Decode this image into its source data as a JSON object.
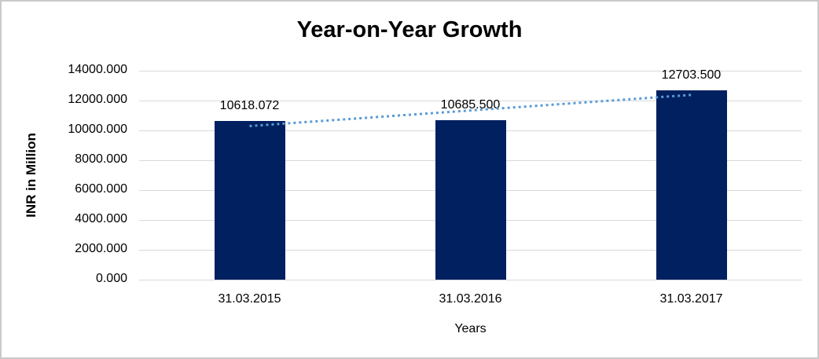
{
  "chart_data": {
    "type": "bar",
    "title": "Year-on-Year Growth",
    "xlabel": "Years",
    "ylabel": "INR in Million",
    "categories": [
      "31.03.2015",
      "31.03.2016",
      "31.03.2017"
    ],
    "values": [
      10618.072,
      10685.5,
      12703.5
    ],
    "data_labels": [
      "10618.072",
      "10685.500",
      "12703.500"
    ],
    "ylim": [
      0,
      14000
    ],
    "ytick_labels": [
      "0.000",
      "2000.000",
      "4000.000",
      "6000.000",
      "8000.000",
      "10000.000",
      "12000.000",
      "14000.000"
    ],
    "grid": "horizontal-only",
    "legend": "none",
    "colors": {
      "bar": "#002060",
      "trendline": "#5b9bd5",
      "gridline": "#d9d9d9",
      "text": "#000000",
      "frame_border": "#c9c9c9",
      "background": "#ffffff"
    },
    "trendline": {
      "type": "linear",
      "style": "dotted",
      "fit_values": [
        10292.98,
        11335.69,
        12378.4
      ]
    }
  }
}
